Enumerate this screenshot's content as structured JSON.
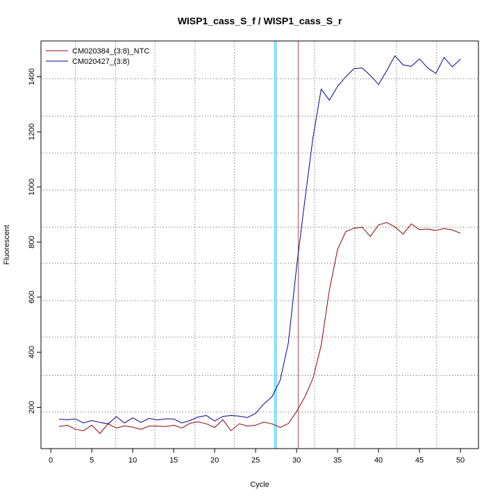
{
  "chart_data": {
    "type": "line",
    "title": "WISP1_cass_S_f / WISP1_cass_S_r",
    "xlabel": "Cycle",
    "ylabel": "Fluorescent",
    "xlim": [
      -1.2,
      52.2
    ],
    "ylim": [
      50,
      1530
    ],
    "xticks": [
      0,
      5,
      10,
      15,
      20,
      25,
      30,
      35,
      40,
      45,
      50
    ],
    "yticks": [
      200,
      400,
      600,
      800,
      1000,
      1200,
      1400
    ],
    "vertical_gridlines": [
      3,
      7.9,
      12.7,
      17.6,
      22.4,
      27.3,
      32.2,
      37.1,
      42.2,
      47.1
    ],
    "horizontal_gridlines": [
      183,
      316,
      455,
      587,
      723,
      854,
      989,
      1123,
      1257,
      1393
    ],
    "grid": "dotted",
    "legend_position": "top-left",
    "threshold_lines": [
      {
        "x": 27.3,
        "color": "#00e5ff"
      },
      {
        "x": 27.5,
        "color": "#5a79ff"
      },
      {
        "x": 30.2,
        "color": "#a0525a"
      }
    ],
    "series": [
      {
        "name": "CM020384_(3:8)_NTC",
        "color": "#8b0000",
        "x": [
          1,
          2,
          3,
          4,
          5,
          6,
          7,
          8,
          9,
          10,
          11,
          12,
          13,
          14,
          15,
          16,
          17,
          18,
          19,
          20,
          21,
          22,
          23,
          24,
          25,
          26,
          27,
          28,
          29,
          30,
          31,
          32,
          33,
          34,
          35,
          36,
          37,
          38,
          39,
          40,
          41,
          42,
          43,
          44,
          45,
          46,
          47,
          48,
          49,
          50
        ],
        "values": [
          130,
          135,
          120,
          115,
          135,
          105,
          140,
          125,
          133,
          128,
          120,
          132,
          132,
          130,
          135,
          125,
          142,
          147,
          140,
          127,
          155,
          115,
          140,
          132,
          135,
          146,
          140,
          127,
          141,
          185,
          237,
          305,
          425,
          625,
          773,
          838,
          850,
          854,
          820,
          862,
          871,
          855,
          829,
          866,
          845,
          847,
          842,
          849,
          844,
          832
        ]
      },
      {
        "name": "CM020427_(3:8)",
        "color": "#00008b",
        "x": [
          1,
          2,
          3,
          4,
          5,
          6,
          7,
          8,
          9,
          10,
          11,
          12,
          13,
          14,
          15,
          16,
          17,
          18,
          19,
          20,
          21,
          22,
          23,
          24,
          25,
          26,
          27,
          28,
          29,
          30,
          31,
          32,
          33,
          34,
          35,
          36,
          37,
          38,
          39,
          40,
          41,
          42,
          43,
          44,
          45,
          46,
          47,
          48,
          49,
          50
        ],
        "values": [
          157,
          155,
          158,
          143,
          152,
          145,
          140,
          166,
          143,
          162,
          145,
          160,
          154,
          158,
          158,
          143,
          152,
          165,
          170,
          150,
          167,
          170,
          168,
          163,
          178,
          212,
          238,
          298,
          435,
          710,
          950,
          1180,
          1355,
          1315,
          1365,
          1400,
          1430,
          1432,
          1405,
          1372,
          1422,
          1476,
          1443,
          1438,
          1465,
          1432,
          1412,
          1470,
          1436,
          1464
        ]
      }
    ]
  }
}
